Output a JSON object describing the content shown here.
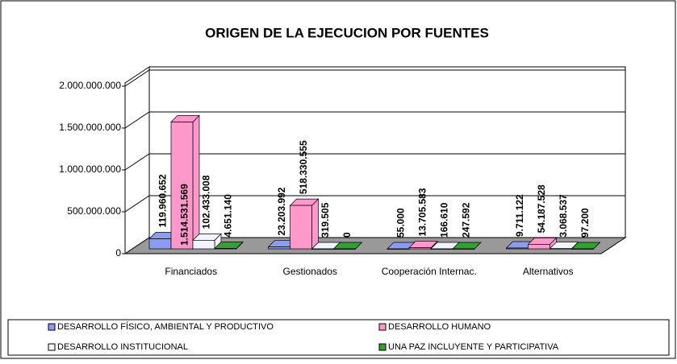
{
  "chart_data": {
    "type": "bar3d",
    "title": "ORIGEN DE LA EJECUCION POR FUENTES",
    "categories": [
      "Financiados",
      "Gestionados",
      "Cooperación Internac.",
      "Alternativos"
    ],
    "series": [
      {
        "name": "DESARROLLO FÍSICO, AMBIENTAL Y PRODUCTIVO",
        "color": "#8c9cf0",
        "values": [
          119960652,
          23203992,
          55000,
          9711122
        ],
        "value_labels": [
          "119.960.652",
          "23.203.992",
          "55.000",
          "9.711.122"
        ]
      },
      {
        "name": "DESARROLLO HUMANO",
        "color": "#ff99cc",
        "values": [
          1514531569,
          518330555,
          13705583,
          54187528
        ],
        "value_labels": [
          "1.514.531.569",
          "518.330.555",
          "13.705.583",
          "54.187.528"
        ]
      },
      {
        "name": "DESARROLLO INSTITUCIONAL",
        "color": "#f4f4ff",
        "values": [
          102433008,
          319505,
          166610,
          3068537
        ],
        "value_labels": [
          "102.433.008",
          "319.505",
          "166.610",
          "3.068.537"
        ]
      },
      {
        "name": "UNA PAZ INCLUYENTE Y PARTICIPATIVA",
        "color": "#33a033",
        "values": [
          4651140,
          0,
          247592,
          97200
        ],
        "value_labels": [
          "4.651.140",
          "0",
          "247.592",
          "97.200"
        ]
      }
    ],
    "ylim": [
      0,
      2000000000
    ],
    "yticks": [
      0,
      {
        "value": 500000000,
        "label": "500.000.000"
      },
      {
        "value": 1000000000,
        "label": "1.000.000.000"
      },
      {
        "value": 1500000000,
        "label": "1.500.000.000"
      },
      {
        "value": 2000000000,
        "label": "2.000.000.000"
      }
    ],
    "grid": true,
    "legend": "bottom"
  }
}
